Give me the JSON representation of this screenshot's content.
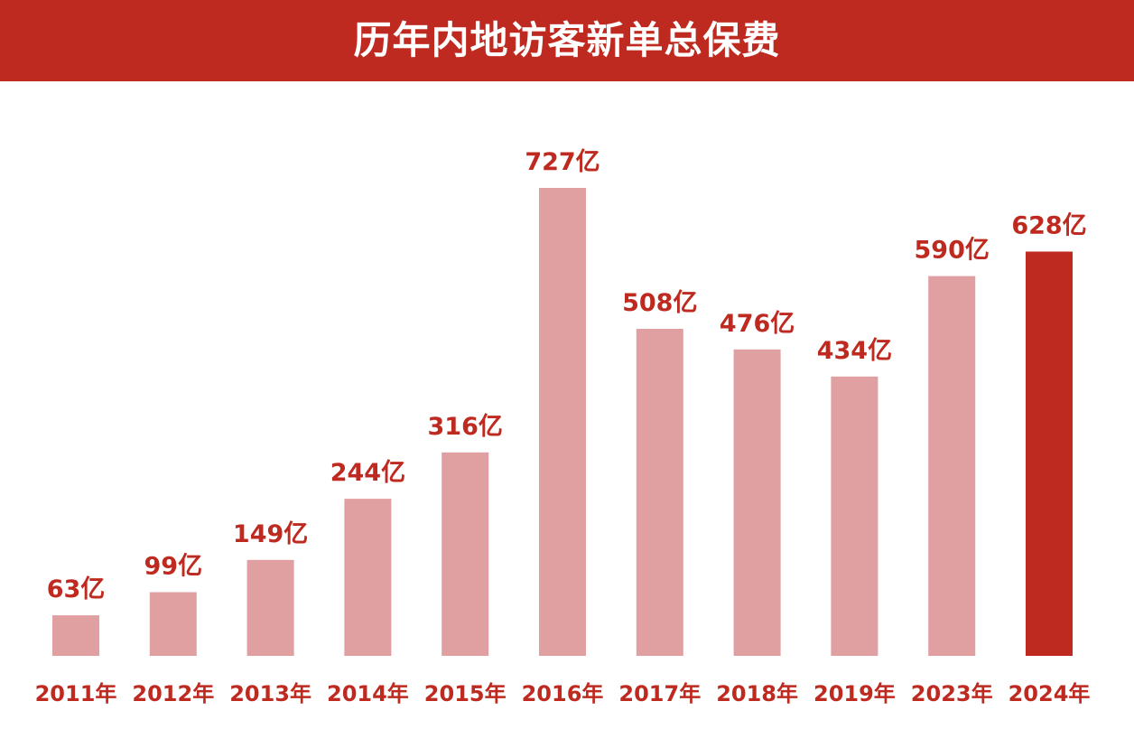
{
  "chart_data": {
    "type": "bar",
    "title": "历年内地访客新单总保费",
    "categories": [
      "2011年",
      "2012年",
      "2013年",
      "2014年",
      "2015年",
      "2016年",
      "2017年",
      "2018年",
      "2019年",
      "2023年",
      "2024年"
    ],
    "values": [
      63,
      99,
      149,
      244,
      316,
      727,
      508,
      476,
      434,
      590,
      628
    ],
    "value_labels": [
      "63亿",
      "99亿",
      "149亿",
      "244亿",
      "316亿",
      "727亿",
      "508亿",
      "476亿",
      "434亿",
      "590亿",
      "628亿"
    ],
    "xlabel": "",
    "ylabel": "",
    "ylim": [
      0,
      727
    ],
    "grid": false,
    "colors": {
      "default_bar": "#e0a0a2",
      "highlight_bar": "#bf2a20",
      "label": "#bf2a20",
      "banner": "#bf2a20"
    },
    "highlight_category": "2024年"
  }
}
